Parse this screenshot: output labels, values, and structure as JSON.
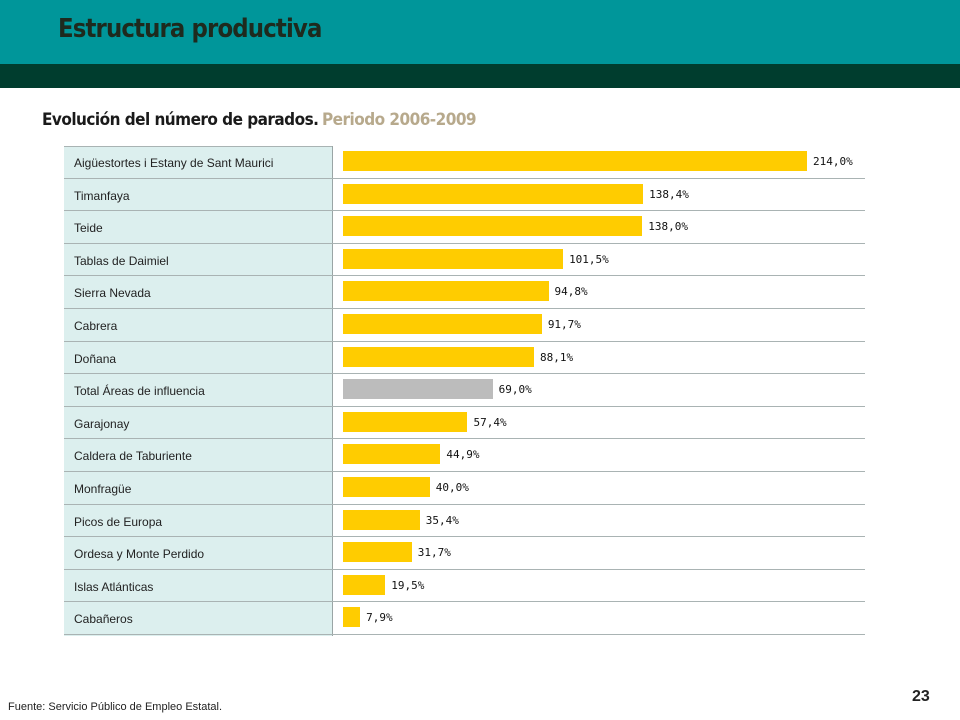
{
  "header": {
    "title": "Estructura productiva",
    "colors": {
      "band": "#00969a",
      "dark_band": "#003d2e"
    }
  },
  "chart_data": {
    "type": "bar",
    "orientation": "horizontal",
    "title": "Evolución del número de parados.",
    "subtitle": "Periodo 2006-2009",
    "categories": [
      "Aigüestortes i Estany de Sant Maurici",
      "Timanfaya",
      "Teide",
      "Tablas de Daimiel",
      "Sierra Nevada",
      "Cabrera",
      "Doñana",
      "Total Áreas de influencia",
      "Garajonay",
      "Caldera  de Taburiente",
      "Monfragüe",
      "Picos de Europa",
      "Ordesa y Monte Perdido",
      "Islas Atlánticas",
      "Cabañeros"
    ],
    "values": [
      214.0,
      138.4,
      138.0,
      101.5,
      94.8,
      91.7,
      88.1,
      69.0,
      57.4,
      44.9,
      40.0,
      35.4,
      31.7,
      19.5,
      7.9
    ],
    "value_labels": [
      "214,0%",
      "138,4%",
      "138,0%",
      "101,5%",
      "94,8%",
      "91,7%",
      "88,1%",
      "69,0%",
      "57,4%",
      "44,9%",
      "40,0%",
      "35,4%",
      "31,7%",
      "19,5%",
      "7,9%"
    ],
    "highlight_index": 7,
    "colors": {
      "bar": "#ffcc00",
      "highlight": "#bcbcbc",
      "label_bg": "#dcefee"
    },
    "xlim": [
      0,
      214.0
    ],
    "grid": false,
    "legend": "none"
  },
  "footer": {
    "source": "Fuente: Servicio Público de Empleo Estatal.",
    "page_number": "23"
  }
}
